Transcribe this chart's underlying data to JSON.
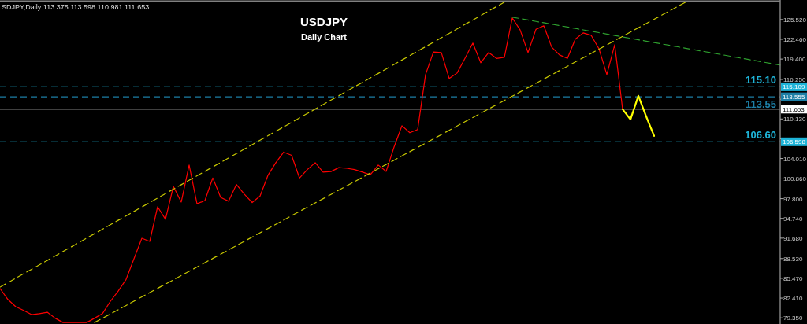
{
  "chart_data": {
    "type": "line",
    "title": "USDJPY",
    "subtitle": "Daily Chart",
    "annotations": [
      "SDJPY,Daily  113.375 113.598 110.981 111.653",
      {
        "text": "115.10",
        "y": 115.109
      },
      {
        "text": "113.55",
        "y": 113.555
      },
      {
        "text": "106.60",
        "y": 106.598
      }
    ],
    "categories": [
      null,
      null,
      null,
      null,
      null,
      null,
      null,
      null,
      null,
      null,
      null,
      null,
      null,
      null,
      null,
      null,
      null,
      null,
      null,
      null,
      null,
      null,
      null,
      null,
      null,
      null,
      null,
      null,
      null,
      null,
      null,
      null,
      null,
      null,
      null,
      null,
      null,
      null,
      null,
      null,
      null,
      null,
      null,
      null,
      null,
      null,
      null,
      null,
      null,
      null,
      null,
      null,
      null,
      null,
      null,
      null,
      null,
      null,
      null,
      null,
      null,
      null,
      null,
      null,
      null,
      null,
      null,
      null,
      null,
      null,
      null,
      null,
      null,
      null,
      null,
      null,
      null,
      null,
      null,
      null,
      null,
      null,
      null,
      null,
      null,
      null,
      null,
      null,
      null,
      null,
      null,
      null,
      null,
      null,
      null,
      null,
      null,
      null,
      null,
      null
    ],
    "ylim": [
      78.4,
      128.3
    ],
    "tick_labels": "y",
    "yticks": [
      {
        "value": 79.35,
        "label": "79.350"
      },
      {
        "value": 82.41,
        "label": "82.410"
      },
      {
        "value": 85.47,
        "label": "85.470"
      },
      {
        "value": 88.53,
        "label": "88.530"
      },
      {
        "value": 91.68,
        "label": "91.680"
      },
      {
        "value": 94.74,
        "label": "94.740"
      },
      {
        "value": 97.8,
        "label": "97.800"
      },
      {
        "value": 100.86,
        "label": "100.860"
      },
      {
        "value": 104.01,
        "label": "104.010"
      },
      {
        "value": 107.07,
        "label": null
      },
      {
        "value": 110.13,
        "label": "110.130"
      },
      {
        "value": 113.19,
        "label": null
      },
      {
        "value": 116.25,
        "label": "116.250"
      },
      {
        "value": 119.4,
        "label": "119.400"
      },
      {
        "value": 122.46,
        "label": "122.460"
      },
      {
        "value": 125.52,
        "label": "125.520"
      }
    ],
    "ref_lines": [
      {
        "axis": "y",
        "value": 115.109,
        "label": "115.109",
        "color": "#1eb4d8",
        "line_style": "dashed"
      },
      {
        "axis": "y",
        "value": 113.555,
        "label": "113.555",
        "color": "#1d7fa6",
        "line_style": "dashed"
      },
      {
        "axis": "y",
        "value": 111.653,
        "label": "111.653",
        "color": "#808080",
        "line_style": "solid"
      },
      {
        "axis": "y",
        "value": 106.598,
        "label": "106.598",
        "color": "#1eb4d8",
        "line_style": "dashed"
      }
    ],
    "series": [
      {
        "color": "#ff0000",
        "line_style": "solid",
        "values": [
          83.9,
          82.2,
          81.07,
          80.5,
          79.85,
          80.0,
          80.22,
          79.3,
          78.63,
          78.63,
          78.63,
          78.63,
          79.3,
          80.0,
          81.9,
          83.5,
          85.3,
          88.5,
          91.66,
          91.18,
          96.54,
          94.6,
          99.7,
          97.27,
          103.0,
          97.0,
          97.5,
          101.0,
          98.0,
          97.4,
          100.0,
          98.5,
          97.2,
          98.2,
          101.41,
          103.36,
          105.0,
          104.5,
          101.0,
          102.3,
          103.36,
          101.9,
          102.0,
          102.6,
          102.5,
          102.3,
          101.9,
          101.5,
          103.0,
          102.02,
          105.79,
          109.08,
          108.0,
          108.5,
          117.0,
          120.5,
          120.41,
          116.39,
          117.24,
          119.5,
          121.87,
          118.83,
          120.41,
          119.5,
          119.68,
          125.77,
          123.9,
          120.41,
          124.0,
          124.55,
          121.26,
          120.04,
          119.5,
          122.5,
          123.45,
          123.09,
          121.0,
          117.0,
          121.63,
          111.65,
          null,
          null,
          null,
          null,
          null,
          null,
          null,
          null,
          null,
          null,
          null,
          null,
          null,
          null,
          null,
          null,
          null,
          null,
          null,
          null
        ]
      },
      {
        "color": "#ffff00",
        "line_style": "solid",
        "values": [
          null,
          null,
          null,
          null,
          null,
          null,
          null,
          null,
          null,
          null,
          null,
          null,
          null,
          null,
          null,
          null,
          null,
          null,
          null,
          null,
          null,
          null,
          null,
          null,
          null,
          null,
          null,
          null,
          null,
          null,
          null,
          null,
          null,
          null,
          null,
          null,
          null,
          null,
          null,
          null,
          null,
          null,
          null,
          null,
          null,
          null,
          null,
          null,
          null,
          null,
          null,
          null,
          null,
          null,
          null,
          null,
          null,
          null,
          null,
          null,
          null,
          null,
          null,
          null,
          null,
          null,
          null,
          null,
          null,
          null,
          null,
          null,
          null,
          null,
          null,
          null,
          null,
          null,
          null,
          111.65,
          110.06,
          113.71,
          110.5,
          107.5,
          null,
          null,
          null,
          null,
          null,
          null,
          null,
          null,
          null,
          null,
          null,
          null,
          null,
          null,
          null,
          null
        ]
      },
      {
        "color": "#c8c800",
        "line_style": "dashed",
        "values": [
          84.11,
          84.8,
          85.49,
          86.18,
          86.87,
          87.56,
          88.24,
          88.93,
          89.62,
          90.31,
          91.0,
          91.69,
          92.38,
          93.07,
          93.76,
          94.45,
          95.13,
          95.82,
          96.51,
          97.2,
          97.89,
          98.58,
          99.27,
          99.96,
          100.65,
          101.34,
          102.02,
          102.71,
          103.4,
          104.09,
          104.78,
          105.47,
          106.16,
          106.85,
          107.54,
          108.23,
          108.91,
          109.6,
          110.29,
          110.98,
          111.67,
          112.36,
          113.05,
          113.74,
          114.43,
          115.12,
          115.8,
          116.49,
          117.18,
          117.87,
          118.56,
          119.25,
          119.94,
          120.63,
          121.32,
          122.01,
          122.69,
          123.38,
          124.07,
          124.76,
          125.45,
          126.14,
          126.83,
          127.52,
          128.21,
          null,
          null,
          null,
          null,
          null,
          null,
          null,
          null,
          null,
          null,
          null,
          null,
          null,
          null,
          null,
          null,
          null,
          null,
          null,
          null,
          null,
          null,
          null,
          null,
          null,
          null,
          null,
          null,
          null,
          null,
          null,
          null,
          null,
          null,
          null
        ]
      },
      {
        "color": "#c8c800",
        "line_style": "dashed",
        "values": [
          null,
          null,
          null,
          null,
          null,
          null,
          null,
          null,
          null,
          null,
          null,
          null,
          78.63,
          79.29,
          79.95,
          80.61,
          81.27,
          81.94,
          82.6,
          83.26,
          83.92,
          84.58,
          85.24,
          85.9,
          86.56,
          87.22,
          87.88,
          88.55,
          89.21,
          89.87,
          90.53,
          91.19,
          91.85,
          92.51,
          93.17,
          93.83,
          94.49,
          95.16,
          95.82,
          96.48,
          97.14,
          97.8,
          98.46,
          99.12,
          99.78,
          100.44,
          101.1,
          101.77,
          102.43,
          103.09,
          103.75,
          104.41,
          105.07,
          105.73,
          106.39,
          107.05,
          107.71,
          108.38,
          109.04,
          109.7,
          110.36,
          111.02,
          111.68,
          112.34,
          113.0,
          113.66,
          114.32,
          114.99,
          115.65,
          116.31,
          116.97,
          117.63,
          118.29,
          118.95,
          119.61,
          120.27,
          120.93,
          121.6,
          122.26,
          122.92,
          123.58,
          124.24,
          124.9,
          125.56,
          126.22,
          126.88,
          127.55,
          128.21,
          null,
          null,
          null,
          null,
          null,
          null,
          null,
          null,
          null,
          null,
          null,
          null
        ]
      },
      {
        "color": "#2e9e2e",
        "line_style": "dashed",
        "values": [
          null,
          null,
          null,
          null,
          null,
          null,
          null,
          null,
          null,
          null,
          null,
          null,
          null,
          null,
          null,
          null,
          null,
          null,
          null,
          null,
          null,
          null,
          null,
          null,
          null,
          null,
          null,
          null,
          null,
          null,
          null,
          null,
          null,
          null,
          null,
          null,
          null,
          null,
          null,
          null,
          null,
          null,
          null,
          null,
          null,
          null,
          null,
          null,
          null,
          null,
          null,
          null,
          null,
          null,
          null,
          null,
          null,
          null,
          null,
          null,
          null,
          null,
          null,
          null,
          null,
          125.89,
          125.67,
          125.45,
          125.23,
          125.02,
          124.8,
          124.58,
          124.36,
          124.14,
          123.92,
          123.7,
          123.49,
          123.27,
          123.05,
          122.83,
          122.61,
          122.39,
          122.17,
          121.96,
          121.74,
          121.52,
          121.3,
          121.08,
          120.86,
          120.64,
          120.43,
          120.21,
          119.99,
          119.77,
          119.55,
          119.33,
          119.12,
          118.9,
          118.68,
          118.46
        ]
      }
    ]
  }
}
